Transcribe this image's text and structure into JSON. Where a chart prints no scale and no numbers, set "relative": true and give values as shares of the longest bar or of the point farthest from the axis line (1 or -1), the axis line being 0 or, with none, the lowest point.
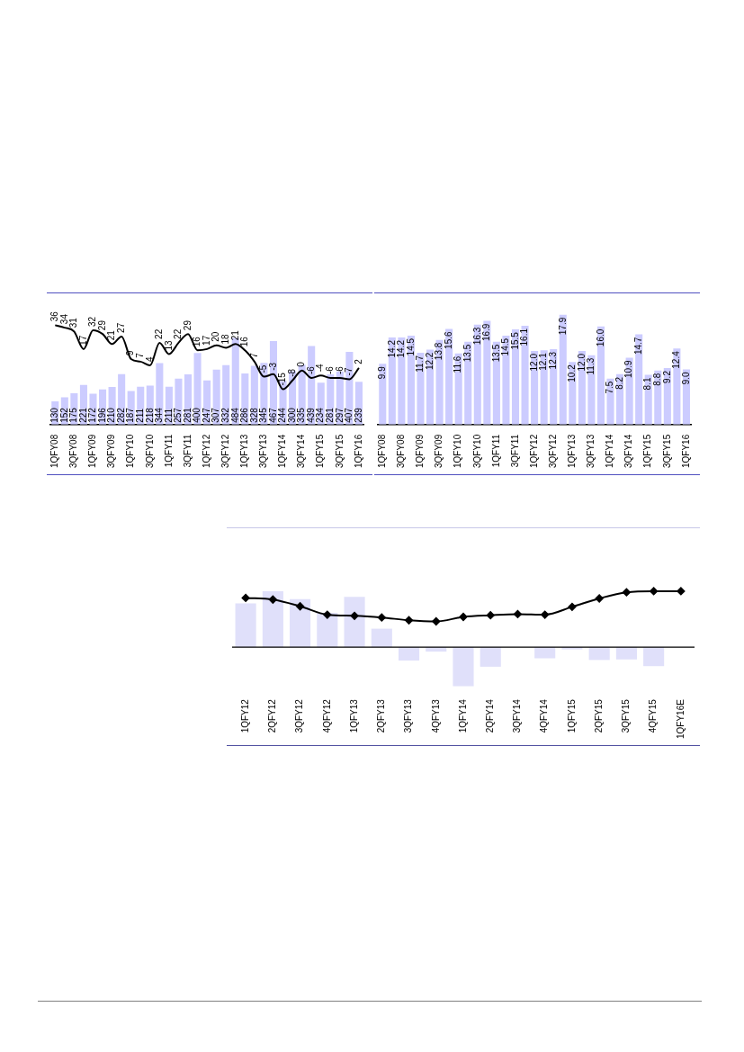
{
  "chart_data": [
    {
      "type": "bar",
      "categories": [
        "1QFY08",
        null,
        "3QFY08",
        null,
        "1QFY09",
        null,
        "3QFY09",
        null,
        "1QFY10",
        null,
        "3QFY10",
        null,
        "1QFY11",
        null,
        "3QFY11",
        null,
        "1QFY12",
        null,
        "3QFY12",
        null,
        "1QFY13",
        null,
        "3QFY13",
        null,
        "1QFY14",
        null,
        "3QFY14",
        null,
        "1QFY15",
        null,
        "3QFY15",
        null,
        "1QFY16"
      ],
      "series": [
        {
          "type": "bar",
          "color": "#ccccff",
          "values": [
            130,
            152,
            175,
            221,
            172,
            196,
            210,
            282,
            187,
            211,
            218,
            344,
            211,
            257,
            281,
            400,
            247,
            307,
            332,
            484,
            286,
            328,
            345,
            467,
            244,
            300,
            335,
            439,
            234,
            281,
            297,
            407,
            239
          ]
        },
        {
          "type": "line",
          "color": "#000000",
          "axis": "y2",
          "values": [
            36,
            34,
            31,
            17,
            32,
            29,
            21,
            27,
            9,
            7,
            4,
            22,
            13,
            22,
            29,
            16,
            17,
            20,
            18,
            21,
            16,
            7,
            -5,
            -3,
            -15,
            -8,
            0,
            -6,
            -4,
            -6,
            -6,
            -7,
            2
          ]
        }
      ],
      "data_labels": true,
      "tick_labels": "x"
    },
    {
      "type": "bar",
      "categories": [
        "1QFY08",
        null,
        "3QFY08",
        null,
        "1QFY09",
        null,
        "3QFY09",
        null,
        "1QFY10",
        null,
        "3QFY10",
        null,
        "1QFY11",
        null,
        "3QFY11",
        null,
        "1QFY12",
        null,
        "3QFY12",
        null,
        "1QFY13",
        null,
        "3QFY13",
        null,
        "1QFY14",
        null,
        "3QFY14",
        null,
        "1QFY15",
        null,
        "3QFY15",
        null,
        "1QFY16"
      ],
      "color": "#ccccff",
      "values": [
        9.9,
        14.2,
        14.2,
        14.5,
        11.7,
        12.2,
        13.8,
        15.6,
        11.6,
        13.5,
        16.3,
        16.9,
        13.5,
        14.5,
        15.5,
        16.1,
        12.0,
        12.1,
        12.3,
        17.9,
        10.2,
        12.0,
        11.3,
        16.0,
        7.5,
        8.2,
        10.9,
        14.7,
        8.1,
        8.8,
        9.2,
        12.4,
        9.0
      ],
      "value_labels": [
        "9.9",
        "14.2",
        "14.2",
        "14.5",
        "11.7",
        "12.2",
        "13.8",
        "15.6",
        "11.6",
        "13.5",
        "16.3",
        "16.9",
        "13.5",
        "14.5",
        "15.5",
        "16.1",
        "12.0",
        "12.1",
        "12.3",
        "17.9",
        "10.2",
        "12.0",
        "11.3",
        "16.0",
        "7.5",
        "8.2",
        "10.9",
        "14.7",
        "8.1",
        "8.8",
        "9.2",
        "12.4",
        "9.0"
      ],
      "tick_labels": "x"
    },
    {
      "type": "bar",
      "relative": true,
      "marker": "diamond",
      "categories": [
        "1QFY12",
        "2QFY12",
        "3QFY12",
        "4QFY12",
        "1QFY13",
        "2QFY13",
        "3QFY13",
        "4QFY13",
        "1QFY14",
        "2QFY14",
        "3QFY14",
        "4QFY14",
        "1QFY15",
        "2QFY15",
        "3QFY15",
        "4QFY15",
        "1QFY16E"
      ],
      "series": [
        {
          "type": "bar",
          "color": "#e0e0fa",
          "values": [
            0.78,
            1,
            0.86,
            0.61,
            0.9,
            0.33,
            -0.24,
            -0.08,
            -0.7,
            -0.35,
            0,
            -0.2,
            -0.04,
            -0.23,
            -0.22,
            -0.34,
            0
          ]
        },
        {
          "type": "line",
          "color": "#000000",
          "values": [
            0.88,
            0.85,
            0.73,
            0.58,
            0.56,
            0.53,
            0.48,
            0.46,
            0.54,
            0.57,
            0.59,
            0.58,
            0.72,
            0.87,
            0.98,
            1,
            1
          ]
        }
      ],
      "tick_labels": "x"
    }
  ]
}
